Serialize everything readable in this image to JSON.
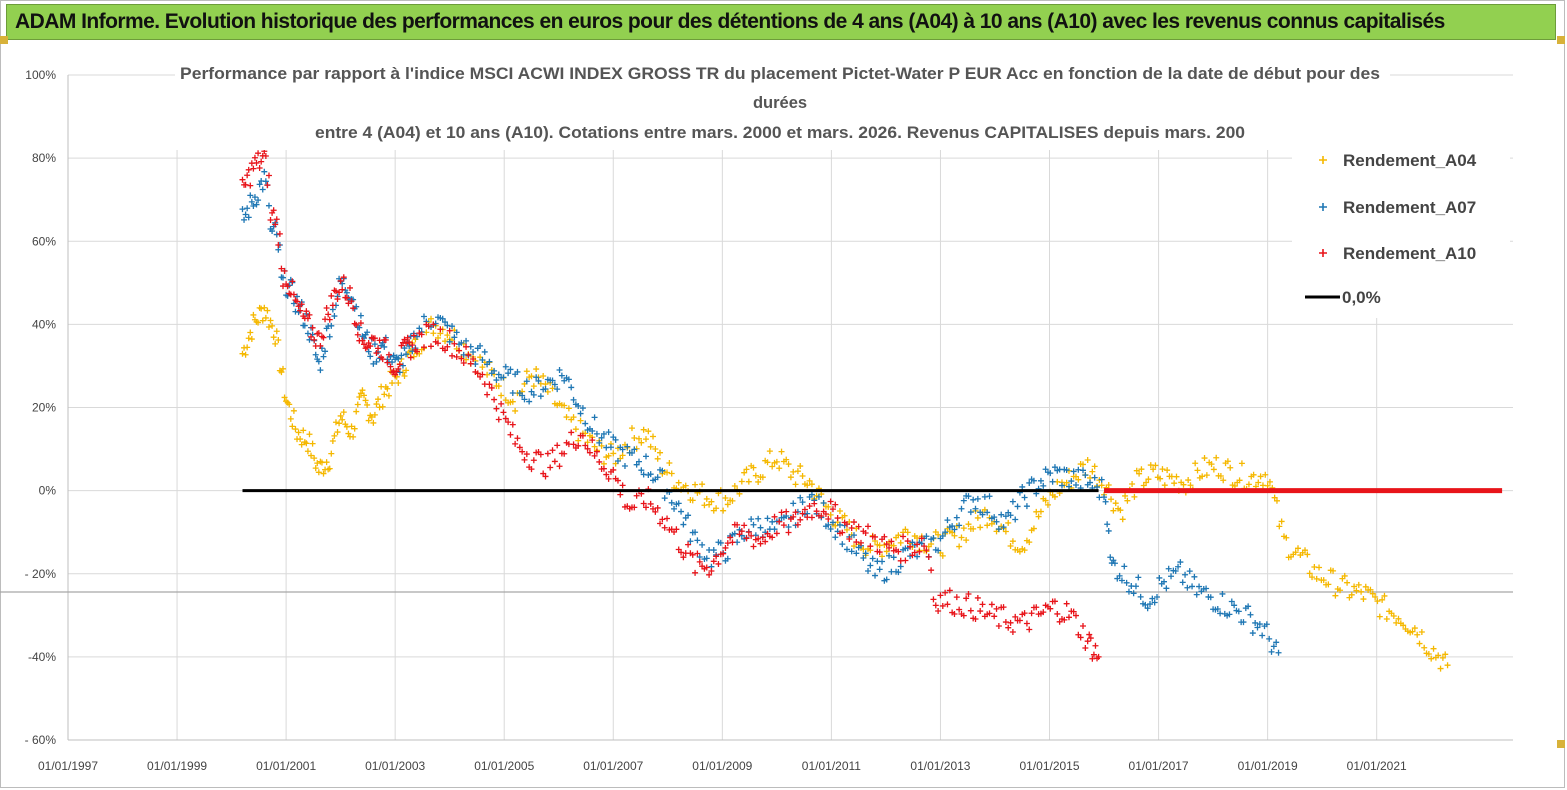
{
  "header": {
    "title": "ADAM Informe. Evolution historique des performances en euros pour des détentions de 4 ans (A04) à 10 ans (A10) avec les revenus connus capitalisés"
  },
  "colors": {
    "banner": "#92d050",
    "a04": "#f5b800",
    "a07": "#1f77b4",
    "a10": "#e8141a",
    "zero": "#000000",
    "grid": "#d9d9d9"
  },
  "chart_data": {
    "type": "scatter",
    "title_lines": [
      "Performance par rapport à l'indice MSCI ACWI INDEX GROSS TR  du placement Pictet-Water P EUR Acc en fonction de la date de début pour des",
      "durées",
      "entre 4 (A04) et 10 ans (A10). Cotations entre mars. 2000 et mars. 2026. Revenus CAPITALISES depuis mars. 200"
    ],
    "xlabel": "",
    "ylabel": "",
    "xlim": [
      1997.0,
      2023.5
    ],
    "ylim": [
      -60,
      100
    ],
    "x_ticks": [
      "01/01/1997",
      "01/01/1999",
      "01/01/2001",
      "01/01/2003",
      "01/01/2005",
      "01/01/2007",
      "01/01/2009",
      "01/01/2011",
      "01/01/2013",
      "01/01/2015",
      "01/01/2017",
      "01/01/2019",
      "01/01/2021"
    ],
    "x_tick_years": [
      1997,
      1999,
      2001,
      2003,
      2005,
      2007,
      2009,
      2011,
      2013,
      2015,
      2017,
      2019,
      2021
    ],
    "y_ticks": [
      100,
      80,
      60,
      40,
      20,
      0,
      -20,
      -40,
      -60
    ],
    "y_tick_labels": [
      "100%",
      "80%",
      "60%",
      "40%",
      "20%",
      "0%",
      "- 20%",
      "-40%",
      "- 60%"
    ],
    "legend_position": "top-right",
    "legend": [
      "Rendement_A04",
      "Rendement_A07",
      "Rendement_A10",
      "0,0%"
    ],
    "series": [
      {
        "name": "Rendement_A04",
        "x": [
          2000.2,
          2000.4,
          2000.6,
          2000.8,
          2001.0,
          2001.2,
          2001.4,
          2001.6,
          2001.8,
          2002.0,
          2002.2,
          2002.4,
          2002.6,
          2002.8,
          2003.0,
          2003.2,
          2003.4,
          2003.7,
          2004.0,
          2004.3,
          2004.6,
          2004.9,
          2005.2,
          2005.5,
          2005.8,
          2006.1,
          2006.4,
          2006.7,
          2007.0,
          2007.3,
          2007.6,
          2007.9,
          2008.2,
          2008.5,
          2008.8,
          2009.1,
          2009.4,
          2009.7,
          2010.0,
          2010.3,
          2010.6,
          2010.9,
          2011.2,
          2011.5,
          2011.8,
          2012.1,
          2012.4,
          2012.7,
          2013.0,
          2013.3,
          2013.6,
          2013.9,
          2014.2,
          2014.5,
          2014.8,
          2015.1,
          2015.4,
          2015.7,
          2016.0,
          2016.3,
          2016.6,
          2016.9,
          2017.2,
          2017.5,
          2017.8,
          2018.1,
          2018.4,
          2018.7,
          2019.0,
          2019.3,
          2019.6,
          2019.9,
          2020.2,
          2020.5,
          2020.8,
          2021.1,
          2021.4,
          2021.7,
          2022.0,
          2022.3
        ],
        "values": [
          33,
          40,
          44,
          38,
          22,
          14,
          12,
          5,
          8,
          18,
          14,
          22,
          18,
          24,
          27,
          31,
          35,
          40,
          38,
          34,
          30,
          26,
          22,
          28,
          24,
          18,
          14,
          10,
          8,
          12,
          14,
          6,
          2,
          0,
          -2,
          -2,
          2,
          5,
          8,
          4,
          2,
          -4,
          -8,
          -12,
          -14,
          -12,
          -10,
          -12,
          -13,
          -11,
          -8,
          -5,
          -10,
          -13,
          -6,
          0,
          3,
          6,
          2,
          -5,
          2,
          4,
          3,
          2,
          5,
          6,
          4,
          3,
          4,
          -12,
          -16,
          -20,
          -22,
          -24,
          -25,
          -28,
          -30,
          -33,
          -38,
          -42
        ]
      },
      {
        "name": "Rendement_A07",
        "x": [
          2000.2,
          2000.4,
          2000.6,
          2000.8,
          2001.0,
          2001.2,
          2001.4,
          2001.6,
          2001.8,
          2002.0,
          2002.2,
          2002.4,
          2002.6,
          2002.8,
          2003.0,
          2003.2,
          2003.4,
          2003.7,
          2004.0,
          2004.3,
          2004.6,
          2004.9,
          2005.2,
          2005.5,
          2005.8,
          2006.1,
          2006.4,
          2006.7,
          2007.0,
          2007.3,
          2007.6,
          2007.9,
          2008.2,
          2008.5,
          2008.8,
          2009.1,
          2009.4,
          2009.7,
          2010.0,
          2010.3,
          2010.6,
          2010.9,
          2011.2,
          2011.5,
          2011.8,
          2012.1,
          2012.4,
          2012.7,
          2013.0,
          2013.3,
          2013.6,
          2013.9,
          2014.2,
          2014.5,
          2014.8,
          2015.1,
          2015.4,
          2015.7,
          2016.0,
          2016.2,
          2016.5,
          2016.8,
          2017.1,
          2017.4,
          2017.7,
          2018.0,
          2018.3,
          2018.6,
          2018.9,
          2019.2
        ],
        "values": [
          65,
          70,
          75,
          62,
          50,
          45,
          40,
          30,
          40,
          50,
          48,
          38,
          33,
          35,
          30,
          32,
          38,
          42,
          38,
          34,
          32,
          28,
          26,
          24,
          26,
          28,
          20,
          14,
          10,
          8,
          6,
          2,
          -4,
          -12,
          -16,
          -14,
          -10,
          -8,
          -10,
          -6,
          -2,
          -6,
          -10,
          -15,
          -20,
          -18,
          -15,
          -14,
          -12,
          -6,
          -2,
          -4,
          -8,
          -2,
          2,
          4,
          3,
          2,
          0,
          -18,
          -22,
          -26,
          -22,
          -20,
          -24,
          -26,
          -28,
          -30,
          -33,
          -39
        ]
      },
      {
        "name": "Rendement_A10",
        "x": [
          2000.2,
          2000.4,
          2000.6,
          2000.8,
          2001.0,
          2001.2,
          2001.4,
          2001.6,
          2001.8,
          2002.0,
          2002.2,
          2002.4,
          2002.6,
          2002.8,
          2003.0,
          2003.2,
          2003.4,
          2003.7,
          2004.0,
          2004.3,
          2004.6,
          2004.9,
          2005.2,
          2005.5,
          2005.8,
          2006.1,
          2006.4,
          2006.7,
          2007.0,
          2007.3,
          2007.6,
          2007.9,
          2008.2,
          2008.5,
          2008.8,
          2009.1,
          2009.4,
          2009.7,
          2010.0,
          2010.3,
          2010.6,
          2010.9,
          2011.2,
          2011.5,
          2011.8,
          2012.1,
          2012.4,
          2012.7,
          2013.0,
          2013.3,
          2013.6,
          2013.9,
          2014.2,
          2014.5,
          2014.8,
          2015.1,
          2015.4,
          2015.7,
          2015.9
        ],
        "values": [
          72,
          78,
          80,
          66,
          52,
          44,
          40,
          36,
          44,
          50,
          46,
          36,
          36,
          34,
          30,
          34,
          36,
          38,
          36,
          32,
          28,
          20,
          12,
          8,
          6,
          10,
          14,
          8,
          4,
          -4,
          -2,
          -6,
          -12,
          -18,
          -18,
          -12,
          -10,
          -12,
          -8,
          -8,
          -4,
          -4,
          -8,
          -10,
          -12,
          -14,
          -14,
          -12,
          -26,
          -27,
          -28,
          -30,
          -31,
          -32,
          -30,
          -28,
          -30,
          -36,
          -40
        ]
      }
    ],
    "zero_line": {
      "label": "0,0%",
      "x_start": 2000.2,
      "x_end": 2015.9,
      "value": 0
    },
    "a10_zero_segment": {
      "x_start": 2016.0,
      "x_end": 2023.3,
      "value": 0
    }
  }
}
